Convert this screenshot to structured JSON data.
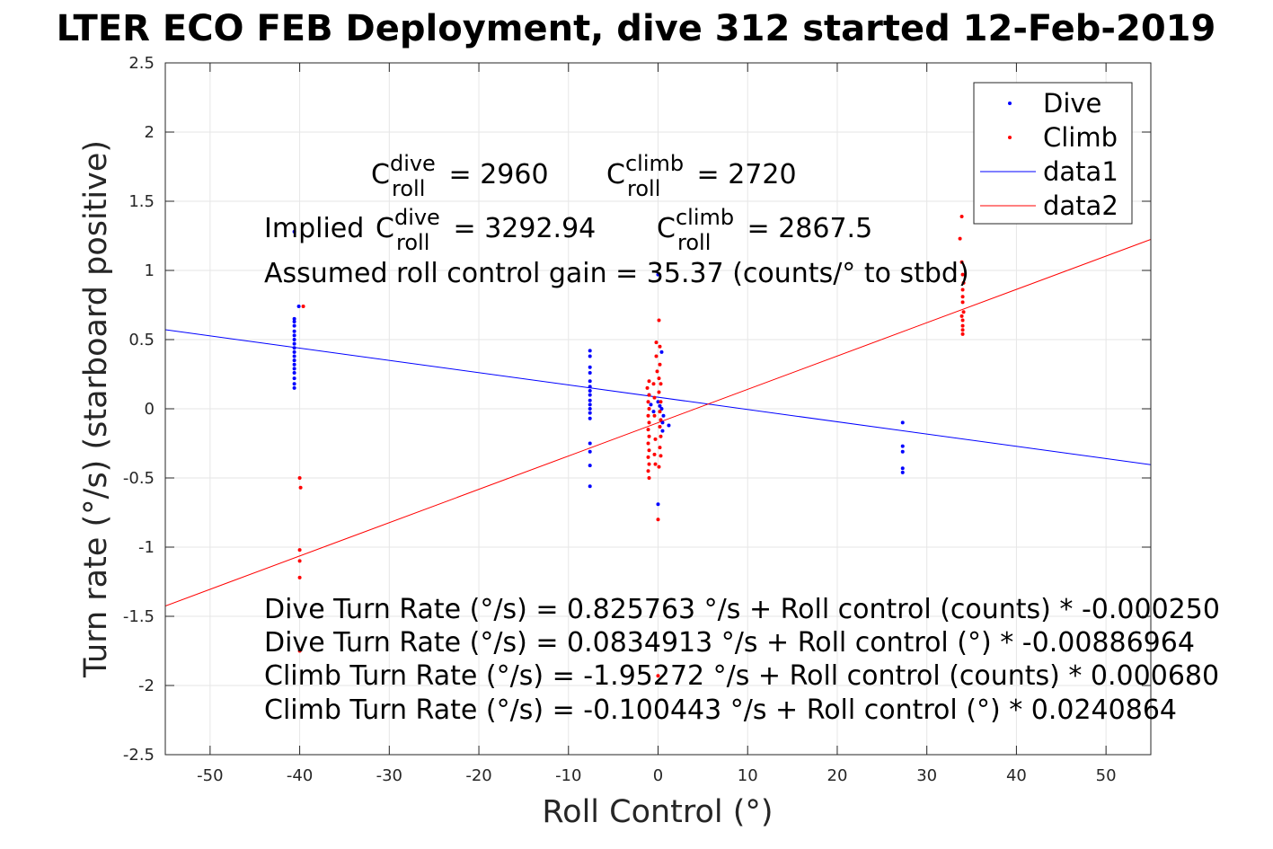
{
  "chart_data": {
    "type": "scatter",
    "title": "LTER ECO FEB Deployment, dive 312 started 12-Feb-2019",
    "xlabel": "Roll Control (°)",
    "ylabel": "Turn rate (°/s) (starboard positive)",
    "xlim": [
      -55,
      55
    ],
    "ylim": [
      -2.5,
      2.5
    ],
    "grid": true,
    "legend_position": "top-right",
    "x_ticks": [
      "-50",
      "-40",
      "-30",
      "-20",
      "-10",
      "0",
      "10",
      "20",
      "30",
      "40",
      "50"
    ],
    "y_ticks": [
      "2.5",
      "2",
      "1.5",
      "1",
      "0.5",
      "0",
      "-0.5",
      "-1",
      "-1.5",
      "-2",
      "-2.5"
    ],
    "legend": [
      "Dive",
      "Climb",
      "data1",
      "data2"
    ],
    "colors": {
      "dive": "#0000ff",
      "climb": "#ff0000",
      "data1": "#0000ff",
      "data2": "#ff0000"
    },
    "series": [
      {
        "name": "Dive",
        "kind": "points",
        "points": [
          [
            -40.6,
            0.15
          ],
          [
            -40.6,
            0.18
          ],
          [
            -40.6,
            0.22
          ],
          [
            -40.6,
            0.26
          ],
          [
            -40.6,
            0.29
          ],
          [
            -40.6,
            0.32
          ],
          [
            -40.6,
            0.35
          ],
          [
            -40.6,
            0.38
          ],
          [
            -40.6,
            0.41
          ],
          [
            -40.6,
            0.44
          ],
          [
            -40.6,
            0.47
          ],
          [
            -40.6,
            0.5
          ],
          [
            -40.6,
            0.53
          ],
          [
            -40.6,
            0.56
          ],
          [
            -40.6,
            0.6
          ],
          [
            -40.6,
            0.63
          ],
          [
            -40.6,
            0.65
          ],
          [
            -40.1,
            0.74
          ],
          [
            -40.6,
            1.28
          ],
          [
            -7.6,
            0.42
          ],
          [
            -7.6,
            0.38
          ],
          [
            -7.6,
            0.3
          ],
          [
            -7.6,
            0.26
          ],
          [
            -7.6,
            0.2
          ],
          [
            -7.6,
            0.16
          ],
          [
            -7.6,
            0.13
          ],
          [
            -7.6,
            0.1
          ],
          [
            -7.6,
            0.06
          ],
          [
            -7.6,
            0.03
          ],
          [
            -7.6,
            0.0
          ],
          [
            -7.6,
            -0.03
          ],
          [
            -7.6,
            -0.07
          ],
          [
            -7.6,
            -0.25
          ],
          [
            -7.6,
            -0.31
          ],
          [
            -7.6,
            -0.41
          ],
          [
            -7.6,
            -0.56
          ],
          [
            -1.0,
            0.1
          ],
          [
            -0.8,
            0.03
          ],
          [
            -0.5,
            -0.02
          ],
          [
            0.0,
            0.05
          ],
          [
            0.2,
            0.02
          ],
          [
            0.4,
            0.0
          ],
          [
            0.6,
            -0.05
          ],
          [
            1.2,
            -0.12
          ],
          [
            0.5,
            -0.16
          ],
          [
            0.5,
            -0.1
          ],
          [
            0.0,
            -0.69
          ],
          [
            0.0,
            0.97
          ],
          [
            0.4,
            0.41
          ],
          [
            27.3,
            -0.1
          ],
          [
            27.3,
            -0.27
          ],
          [
            27.3,
            -0.31
          ],
          [
            27.3,
            -0.43
          ],
          [
            27.3,
            -0.46
          ]
        ]
      },
      {
        "name": "Climb",
        "kind": "points",
        "points": [
          [
            -39.6,
            0.74
          ],
          [
            -40.0,
            -0.5
          ],
          [
            -39.9,
            -0.57
          ],
          [
            -40.0,
            -1.02
          ],
          [
            -40.0,
            -1.1
          ],
          [
            -40.0,
            -1.22
          ],
          [
            -40.0,
            -1.75
          ],
          [
            -1.0,
            0.2
          ],
          [
            -1.2,
            0.15
          ],
          [
            -1.0,
            0.1
          ],
          [
            -1.1,
            0.05
          ],
          [
            -1.0,
            0.0
          ],
          [
            -1.1,
            -0.05
          ],
          [
            -1.0,
            -0.1
          ],
          [
            -1.1,
            -0.15
          ],
          [
            -1.0,
            -0.2
          ],
          [
            -1.1,
            -0.25
          ],
          [
            -1.0,
            -0.3
          ],
          [
            -1.1,
            -0.35
          ],
          [
            -1.0,
            -0.4
          ],
          [
            -1.1,
            -0.45
          ],
          [
            -1.0,
            -0.5
          ],
          [
            -0.5,
            0.18
          ],
          [
            -0.4,
            0.08
          ],
          [
            -0.4,
            -0.05
          ],
          [
            -0.3,
            -0.22
          ],
          [
            -0.4,
            -0.33
          ],
          [
            -0.3,
            -0.4
          ],
          [
            0.1,
            0.64
          ],
          [
            -0.2,
            0.48
          ],
          [
            0.2,
            0.45
          ],
          [
            -0.2,
            0.38
          ],
          [
            0.2,
            0.32
          ],
          [
            -0.1,
            0.27
          ],
          [
            0.1,
            0.22
          ],
          [
            0.3,
            0.18
          ],
          [
            0.1,
            0.12
          ],
          [
            0.3,
            0.05
          ],
          [
            0.2,
            -0.02
          ],
          [
            0.3,
            -0.08
          ],
          [
            0.2,
            -0.13
          ],
          [
            0.3,
            -0.2
          ],
          [
            0.2,
            -0.28
          ],
          [
            0.3,
            -0.34
          ],
          [
            0.1,
            -0.42
          ],
          [
            0.0,
            -0.8
          ],
          [
            0.0,
            -1.93
          ],
          [
            33.9,
            1.39
          ],
          [
            33.7,
            1.23
          ],
          [
            33.9,
            1.06
          ],
          [
            34.0,
            0.97
          ],
          [
            34.1,
            0.91
          ],
          [
            34.0,
            0.86
          ],
          [
            34.0,
            0.81
          ],
          [
            34.0,
            0.77
          ],
          [
            34.1,
            0.7
          ],
          [
            33.9,
            0.67
          ],
          [
            34.0,
            0.64
          ],
          [
            34.0,
            0.6
          ],
          [
            34.0,
            0.57
          ],
          [
            34.0,
            0.54
          ]
        ]
      },
      {
        "name": "data1",
        "kind": "line",
        "x": [
          -55,
          55
        ],
        "y": [
          0.5713,
          -0.4042
        ]
      },
      {
        "name": "data2",
        "kind": "line",
        "x": [
          -55,
          55
        ],
        "y": [
          -1.4252,
          1.2243
        ]
      }
    ],
    "annotations": {
      "c_dive": {
        "base": "C",
        "sup": "dive",
        "sub": "roll",
        "rest": " = 2960"
      },
      "c_climb": {
        "base": "C",
        "sup": "climb",
        "sub": "roll",
        "rest": " = 2720"
      },
      "implied_dive": {
        "prefix": "Implied ",
        "base": "C",
        "sup": "dive",
        "sub": "roll",
        "rest": " = 3292.94"
      },
      "implied_climb": {
        "base": "C",
        "sup": "climb",
        "sub": "roll",
        "rest": " = 2867.5"
      },
      "gain": "Assumed roll control gain = 35.37 (counts/° to stbd)",
      "fits": [
        "Dive Turn Rate (°/s) = 0.825763 °/s + Roll control (counts) * -0.000250",
        "Dive Turn Rate (°/s) = 0.0834913 °/s + Roll control (°) * -0.00886964",
        "Climb Turn Rate (°/s) = -1.95272 °/s + Roll control (counts) * 0.000680",
        "Climb Turn Rate (°/s) = -0.100443 °/s + Roll control (°) * 0.0240864"
      ]
    }
  }
}
